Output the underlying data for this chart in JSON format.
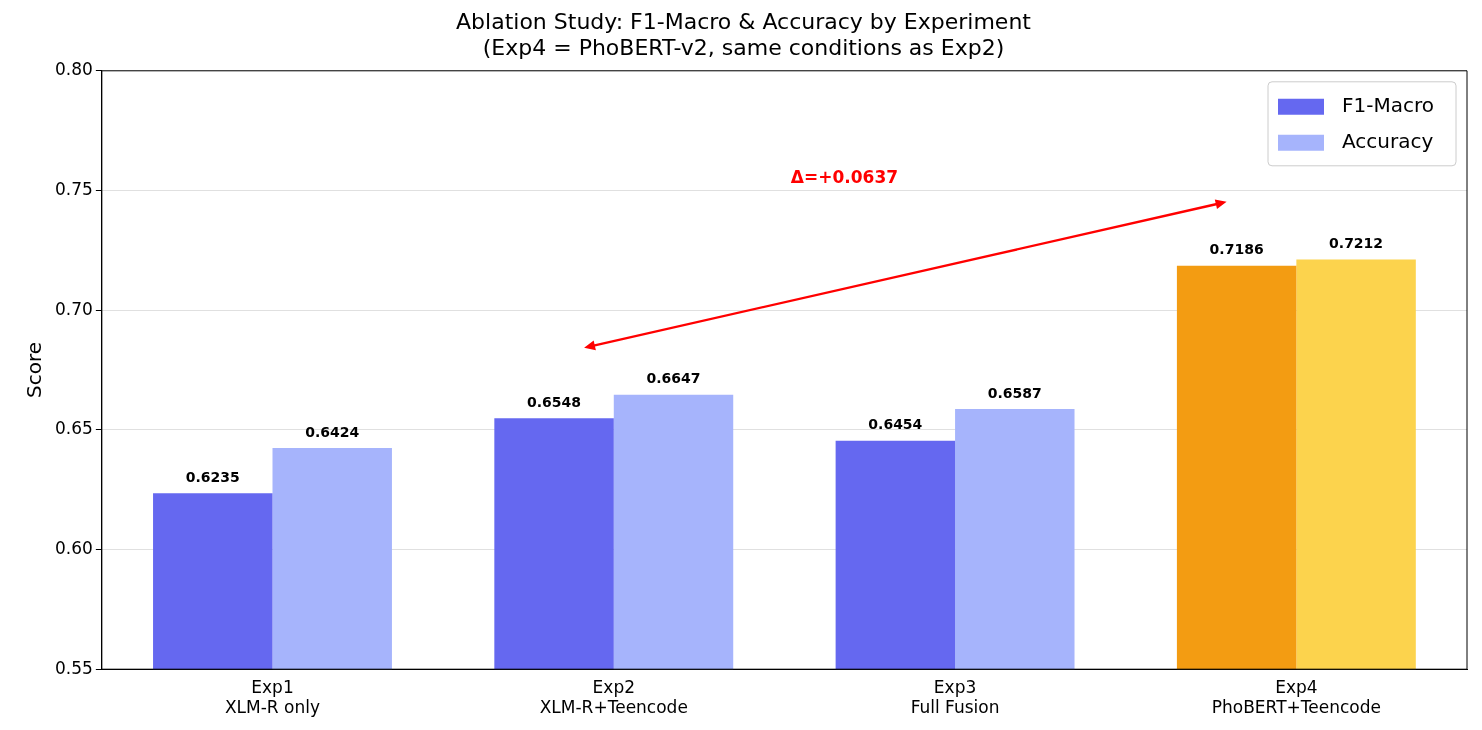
{
  "chart_data": {
    "type": "bar",
    "title": "Ablation Study: F1-Macro & Accuracy by Experiment\n(Exp4 = PhoBERT-v2, same conditions as Exp2)",
    "ylabel": "Score",
    "categories": [
      "Exp1\nXLM-R only",
      "Exp2\nXLM-R+Teencode",
      "Exp3\nFull Fusion",
      "Exp4\nPhoBERT+Teencode"
    ],
    "series": [
      {
        "name": "F1-Macro",
        "color": "#6568f0",
        "colors": [
          "#6568f0",
          "#6568f0",
          "#6568f0",
          "#f39c12"
        ],
        "values": [
          0.6235,
          0.6548,
          0.6454,
          0.7186
        ]
      },
      {
        "name": "Accuracy",
        "color": "#a6b4fc",
        "colors": [
          "#a6b4fc",
          "#a6b4fc",
          "#a6b4fc",
          "#fcd34d"
        ],
        "values": [
          0.6424,
          0.6647,
          0.6587,
          0.7212
        ]
      }
    ],
    "ylim": [
      0.55,
      0.8
    ],
    "yticks": [
      0.55,
      {
        "value": 0.6,
        "label": "0.60"
      },
      0.65,
      {
        "value": 0.7,
        "label": "0.70"
      },
      0.75,
      {
        "value": 0.8,
        "label": "0.80"
      }
    ],
    "grid": "y",
    "legend": "top right",
    "data_labels": true,
    "annotations": [
      "Δ=+0.0637"
    ]
  }
}
